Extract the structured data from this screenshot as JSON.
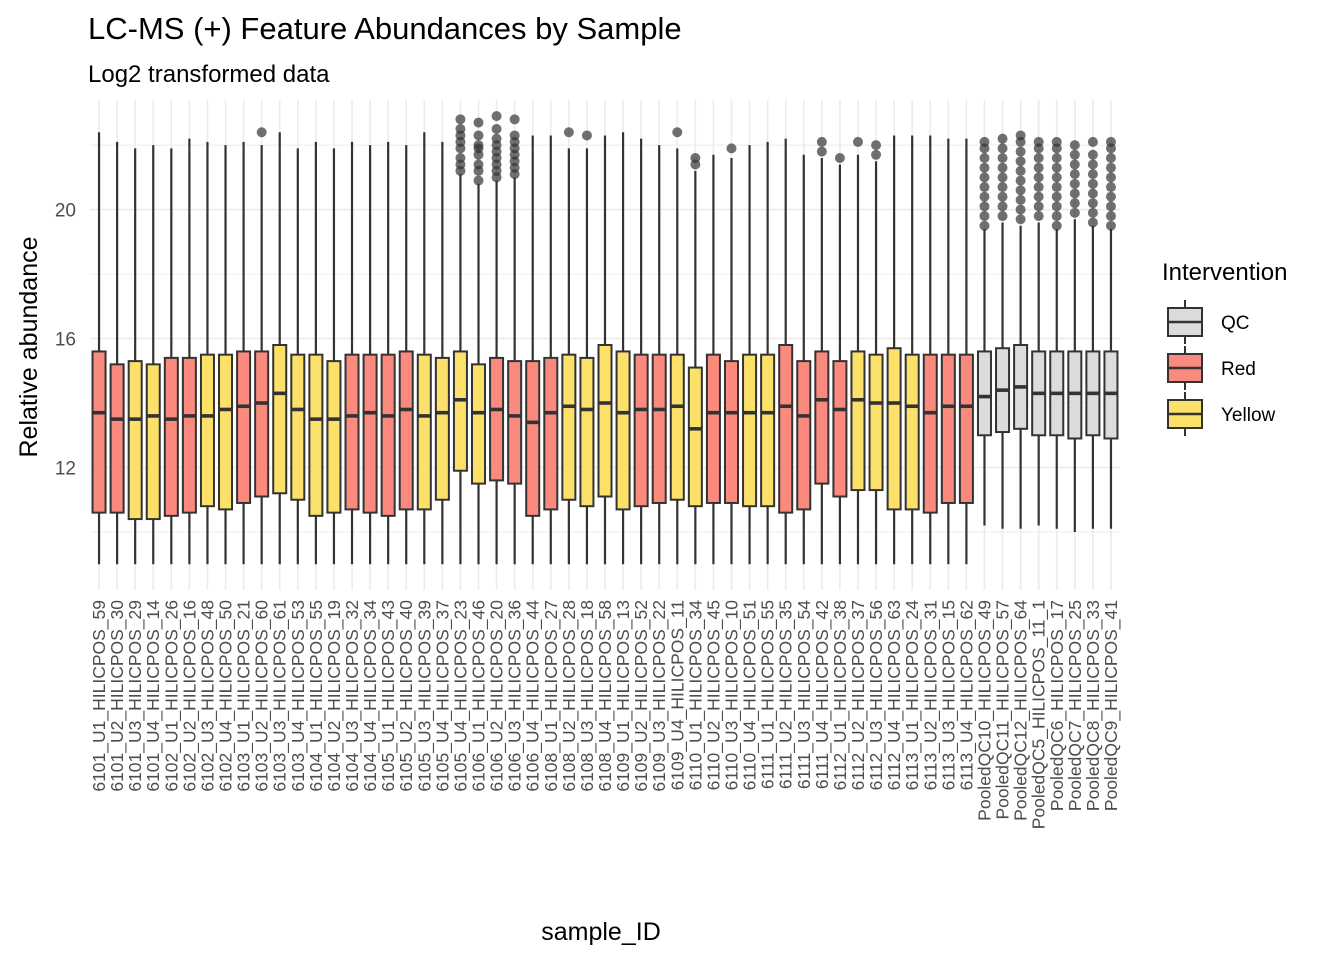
{
  "chart_data": {
    "type": "boxplot",
    "title": "LC-MS (+) Feature Abundances by Sample",
    "subtitle": "Log2 transformed data",
    "xlabel": "sample_ID",
    "ylabel": "Relative abundance",
    "ylim": [
      8.2,
      23.4
    ],
    "yticks": [
      12,
      16,
      20
    ],
    "grid": true,
    "legend": {
      "title": "Intervention",
      "position": "right",
      "entries": [
        {
          "label": "QC",
          "color": "#d9d9d9"
        },
        {
          "label": "Red",
          "color": "#f8766d"
        },
        {
          "label": "Yellow",
          "color": "#f5d34a"
        }
      ]
    },
    "colors": {
      "QC": "#dcdcdc",
      "Red": "#fa8a7e",
      "Yellow": "#fbe16a",
      "outline": "#333333",
      "outlier": "#333333"
    },
    "boxes": [
      {
        "sample": "6101_U1_HILICPOS_59",
        "group": "Red",
        "min": 9.0,
        "q1": 10.6,
        "median": 13.7,
        "q3": 15.6,
        "max": 22.4,
        "outliers": []
      },
      {
        "sample": "6101_U2_HILICPOS_30",
        "group": "Red",
        "min": 9.0,
        "q1": 10.6,
        "median": 13.5,
        "q3": 15.2,
        "max": 22.1,
        "outliers": []
      },
      {
        "sample": "6101_U3_HILICPOS_29",
        "group": "Yellow",
        "min": 9.0,
        "q1": 10.4,
        "median": 13.5,
        "q3": 15.3,
        "max": 21.9,
        "outliers": []
      },
      {
        "sample": "6101_U4_HILICPOS_14",
        "group": "Yellow",
        "min": 9.0,
        "q1": 10.4,
        "median": 13.6,
        "q3": 15.2,
        "max": 22.0,
        "outliers": []
      },
      {
        "sample": "6102_U1_HILICPOS_26",
        "group": "Red",
        "min": 9.0,
        "q1": 10.5,
        "median": 13.5,
        "q3": 15.4,
        "max": 21.9,
        "outliers": []
      },
      {
        "sample": "6102_U2_HILICPOS_16",
        "group": "Red",
        "min": 9.0,
        "q1": 10.6,
        "median": 13.6,
        "q3": 15.4,
        "max": 22.2,
        "outliers": []
      },
      {
        "sample": "6102_U3_HILICPOS_48",
        "group": "Yellow",
        "min": 9.0,
        "q1": 10.8,
        "median": 13.6,
        "q3": 15.5,
        "max": 22.1,
        "outliers": []
      },
      {
        "sample": "6102_U4_HILICPOS_50",
        "group": "Yellow",
        "min": 9.0,
        "q1": 10.7,
        "median": 13.8,
        "q3": 15.5,
        "max": 22.0,
        "outliers": []
      },
      {
        "sample": "6103_U1_HILICPOS_21",
        "group": "Red",
        "min": 9.0,
        "q1": 10.9,
        "median": 13.9,
        "q3": 15.6,
        "max": 22.1,
        "outliers": []
      },
      {
        "sample": "6103_U2_HILICPOS_60",
        "group": "Red",
        "min": 9.0,
        "q1": 11.1,
        "median": 14.0,
        "q3": 15.6,
        "max": 22.0,
        "outliers": [
          22.4
        ]
      },
      {
        "sample": "6103_U3_HILICPOS_61",
        "group": "Yellow",
        "min": 9.0,
        "q1": 11.2,
        "median": 14.3,
        "q3": 15.8,
        "max": 22.4,
        "outliers": []
      },
      {
        "sample": "6103_U4_HILICPOS_53",
        "group": "Yellow",
        "min": 9.0,
        "q1": 11.0,
        "median": 13.8,
        "q3": 15.5,
        "max": 21.9,
        "outliers": []
      },
      {
        "sample": "6104_U1_HILICPOS_55",
        "group": "Yellow",
        "min": 9.0,
        "q1": 10.5,
        "median": 13.5,
        "q3": 15.5,
        "max": 22.1,
        "outliers": []
      },
      {
        "sample": "6104_U2_HILICPOS_19",
        "group": "Yellow",
        "min": 9.0,
        "q1": 10.6,
        "median": 13.5,
        "q3": 15.3,
        "max": 21.9,
        "outliers": []
      },
      {
        "sample": "6104_U3_HILICPOS_32",
        "group": "Red",
        "min": 9.0,
        "q1": 10.7,
        "median": 13.6,
        "q3": 15.5,
        "max": 22.1,
        "outliers": []
      },
      {
        "sample": "6104_U4_HILICPOS_34",
        "group": "Red",
        "min": 9.0,
        "q1": 10.6,
        "median": 13.7,
        "q3": 15.5,
        "max": 22.0,
        "outliers": []
      },
      {
        "sample": "6105_U1_HILICPOS_43",
        "group": "Red",
        "min": 9.0,
        "q1": 10.5,
        "median": 13.6,
        "q3": 15.5,
        "max": 22.1,
        "outliers": []
      },
      {
        "sample": "6105_U2_HILICPOS_40",
        "group": "Red",
        "min": 9.0,
        "q1": 10.7,
        "median": 13.8,
        "q3": 15.6,
        "max": 22.0,
        "outliers": []
      },
      {
        "sample": "6105_U3_HILICPOS_39",
        "group": "Yellow",
        "min": 9.0,
        "q1": 10.7,
        "median": 13.6,
        "q3": 15.5,
        "max": 22.4,
        "outliers": []
      },
      {
        "sample": "6105_U4_HILICPOS_37",
        "group": "Yellow",
        "min": 9.0,
        "q1": 11.0,
        "median": 13.7,
        "q3": 15.4,
        "max": 22.1,
        "outliers": []
      },
      {
        "sample": "6105_U4_HILICPOS_23",
        "group": "Yellow",
        "min": 9.0,
        "q1": 11.9,
        "median": 14.1,
        "q3": 15.6,
        "max": 21.1,
        "outliers": [
          21.2,
          21.4,
          21.6,
          21.9,
          22.1,
          22.3,
          22.5,
          22.8
        ]
      },
      {
        "sample": "6106_U1_HILICPOS_46",
        "group": "Yellow",
        "min": 9.0,
        "q1": 11.5,
        "median": 13.7,
        "q3": 15.2,
        "max": 20.8,
        "outliers": [
          20.9,
          21.2,
          21.4,
          21.7,
          21.9,
          22.0,
          22.3,
          22.7
        ]
      },
      {
        "sample": "6106_U2_HILICPOS_20",
        "group": "Red",
        "min": 9.0,
        "q1": 11.6,
        "median": 13.8,
        "q3": 15.4,
        "max": 20.9,
        "outliers": [
          21.0,
          21.2,
          21.4,
          21.6,
          21.8,
          22.0,
          22.2,
          22.5,
          22.9
        ]
      },
      {
        "sample": "6106_U3_HILICPOS_36",
        "group": "Red",
        "min": 9.0,
        "q1": 11.5,
        "median": 13.6,
        "q3": 15.3,
        "max": 21.0,
        "outliers": [
          21.1,
          21.3,
          21.5,
          21.7,
          21.9,
          22.1,
          22.3,
          22.8
        ]
      },
      {
        "sample": "6106_U4_HILICPOS_44",
        "group": "Red",
        "min": 9.0,
        "q1": 10.5,
        "median": 13.4,
        "q3": 15.3,
        "max": 22.3,
        "outliers": []
      },
      {
        "sample": "6108_U1_HILICPOS_27",
        "group": "Red",
        "min": 9.0,
        "q1": 10.7,
        "median": 13.7,
        "q3": 15.4,
        "max": 22.3,
        "outliers": []
      },
      {
        "sample": "6108_U2_HILICPOS_28",
        "group": "Yellow",
        "min": 9.0,
        "q1": 11.0,
        "median": 13.9,
        "q3": 15.5,
        "max": 21.9,
        "outliers": [
          22.4
        ]
      },
      {
        "sample": "6108_U3_HILICPOS_18",
        "group": "Yellow",
        "min": 9.0,
        "q1": 10.8,
        "median": 13.8,
        "q3": 15.4,
        "max": 21.9,
        "outliers": [
          22.3
        ]
      },
      {
        "sample": "6108_U4_HILICPOS_58",
        "group": "Yellow",
        "min": 9.0,
        "q1": 11.1,
        "median": 14.0,
        "q3": 15.8,
        "max": 22.3,
        "outliers": []
      },
      {
        "sample": "6109_U1_HILICPOS_13",
        "group": "Yellow",
        "min": 9.0,
        "q1": 10.7,
        "median": 13.7,
        "q3": 15.6,
        "max": 22.4,
        "outliers": []
      },
      {
        "sample": "6109_U2_HILICPOS_52",
        "group": "Red",
        "min": 9.0,
        "q1": 10.8,
        "median": 13.8,
        "q3": 15.5,
        "max": 22.2,
        "outliers": []
      },
      {
        "sample": "6109_U3_HILICPOS_22",
        "group": "Red",
        "min": 9.0,
        "q1": 10.9,
        "median": 13.8,
        "q3": 15.5,
        "max": 22.0,
        "outliers": []
      },
      {
        "sample": "6109_U4_HILICPOS_11",
        "group": "Yellow",
        "min": 9.0,
        "q1": 11.0,
        "median": 13.9,
        "q3": 15.5,
        "max": 21.9,
        "outliers": [
          22.4
        ]
      },
      {
        "sample": "6110_U1_HILICPOS_34",
        "group": "Yellow",
        "min": 9.0,
        "q1": 10.8,
        "median": 13.2,
        "q3": 15.1,
        "max": 21.2,
        "outliers": [
          21.4,
          21.6
        ]
      },
      {
        "sample": "6110_U2_HILICPOS_45",
        "group": "Red",
        "min": 9.0,
        "q1": 10.9,
        "median": 13.7,
        "q3": 15.5,
        "max": 21.7,
        "outliers": []
      },
      {
        "sample": "6110_U3_HILICPOS_10",
        "group": "Red",
        "min": 9.0,
        "q1": 10.9,
        "median": 13.7,
        "q3": 15.3,
        "max": 21.6,
        "outliers": [
          21.9
        ]
      },
      {
        "sample": "6110_U4_HILICPOS_51",
        "group": "Yellow",
        "min": 9.0,
        "q1": 10.8,
        "median": 13.7,
        "q3": 15.5,
        "max": 22.0,
        "outliers": []
      },
      {
        "sample": "6111_U1_HILICPOS_55",
        "group": "Yellow",
        "min": 9.0,
        "q1": 10.8,
        "median": 13.7,
        "q3": 15.5,
        "max": 22.1,
        "outliers": []
      },
      {
        "sample": "6111_U2_HILICPOS_35",
        "group": "Red",
        "min": 9.0,
        "q1": 10.6,
        "median": 13.9,
        "q3": 15.8,
        "max": 22.2,
        "outliers": []
      },
      {
        "sample": "6111_U3_HILICPOS_54",
        "group": "Red",
        "min": 9.0,
        "q1": 10.7,
        "median": 13.6,
        "q3": 15.3,
        "max": 21.7,
        "outliers": []
      },
      {
        "sample": "6111_U4_HILICPOS_42",
        "group": "Red",
        "min": 9.0,
        "q1": 11.5,
        "median": 14.1,
        "q3": 15.6,
        "max": 21.6,
        "outliers": [
          21.8,
          22.1
        ]
      },
      {
        "sample": "6112_U1_HILICPOS_38",
        "group": "Red",
        "min": 9.0,
        "q1": 11.1,
        "median": 13.8,
        "q3": 15.3,
        "max": 21.4,
        "outliers": [
          21.6
        ]
      },
      {
        "sample": "6112_U2_HILICPOS_37",
        "group": "Yellow",
        "min": 9.0,
        "q1": 11.3,
        "median": 14.1,
        "q3": 15.6,
        "max": 21.7,
        "outliers": [
          22.1
        ]
      },
      {
        "sample": "6112_U3_HILICPOS_56",
        "group": "Yellow",
        "min": 9.0,
        "q1": 11.3,
        "median": 14.0,
        "q3": 15.5,
        "max": 21.5,
        "outliers": [
          21.7,
          22.0
        ]
      },
      {
        "sample": "6112_U4_HILICPOS_63",
        "group": "Yellow",
        "min": 9.0,
        "q1": 10.7,
        "median": 14.0,
        "q3": 15.7,
        "max": 22.3,
        "outliers": []
      },
      {
        "sample": "6113_U1_HILICPOS_24",
        "group": "Yellow",
        "min": 9.0,
        "q1": 10.7,
        "median": 13.9,
        "q3": 15.5,
        "max": 22.3,
        "outliers": []
      },
      {
        "sample": "6113_U2_HILICPOS_31",
        "group": "Red",
        "min": 9.0,
        "q1": 10.6,
        "median": 13.7,
        "q3": 15.5,
        "max": 22.3,
        "outliers": []
      },
      {
        "sample": "6113_U3_HILICPOS_15",
        "group": "Red",
        "min": 9.0,
        "q1": 10.9,
        "median": 13.9,
        "q3": 15.5,
        "max": 22.2,
        "outliers": []
      },
      {
        "sample": "6113_U4_HILICPOS_62",
        "group": "Red",
        "min": 9.0,
        "q1": 10.9,
        "median": 13.9,
        "q3": 15.5,
        "max": 22.2,
        "outliers": []
      },
      {
        "sample": "PooledQC10_HILICPOS_49",
        "group": "QC",
        "min": 10.2,
        "q1": 13.0,
        "median": 14.2,
        "q3": 15.6,
        "max": 19.4,
        "outliers": [
          19.5,
          19.8,
          20.1,
          20.4,
          20.7,
          21.0,
          21.3,
          21.6,
          21.9,
          22.1
        ]
      },
      {
        "sample": "PooledQC11_HILICPOS_57",
        "group": "QC",
        "min": 10.1,
        "q1": 13.1,
        "median": 14.4,
        "q3": 15.7,
        "max": 19.6,
        "outliers": [
          19.8,
          20.1,
          20.4,
          20.7,
          21.0,
          21.3,
          21.6,
          21.9,
          22.2
        ]
      },
      {
        "sample": "PooledQC12_HILICPOS_64",
        "group": "QC",
        "min": 10.1,
        "q1": 13.2,
        "median": 14.5,
        "q3": 15.8,
        "max": 19.5,
        "outliers": [
          19.7,
          20.0,
          20.3,
          20.6,
          20.9,
          21.2,
          21.5,
          21.8,
          22.1,
          22.3
        ]
      },
      {
        "sample": "PooledQC5_HILICPOS_11_1",
        "group": "QC",
        "min": 10.2,
        "q1": 13.0,
        "median": 14.3,
        "q3": 15.6,
        "max": 19.6,
        "outliers": [
          19.8,
          20.1,
          20.4,
          20.7,
          21.0,
          21.3,
          21.6,
          21.9,
          22.1
        ]
      },
      {
        "sample": "PooledQC6_HILICPOS_17",
        "group": "QC",
        "min": 10.1,
        "q1": 13.0,
        "median": 14.3,
        "q3": 15.6,
        "max": 19.4,
        "outliers": [
          19.5,
          19.8,
          20.1,
          20.4,
          20.7,
          21.0,
          21.3,
          21.6,
          21.9,
          22.1
        ]
      },
      {
        "sample": "PooledQC7_HILICPOS_25",
        "group": "QC",
        "min": 10.0,
        "q1": 12.9,
        "median": 14.3,
        "q3": 15.6,
        "max": 19.7,
        "outliers": [
          19.9,
          20.2,
          20.5,
          20.8,
          21.1,
          21.4,
          21.7,
          22.0
        ]
      },
      {
        "sample": "PooledQC8_HILICPOS_33",
        "group": "QC",
        "min": 10.1,
        "q1": 13.0,
        "median": 14.3,
        "q3": 15.6,
        "max": 19.5,
        "outliers": [
          19.6,
          19.9,
          20.2,
          20.5,
          20.8,
          21.1,
          21.4,
          21.7,
          22.1
        ]
      },
      {
        "sample": "PooledQC9_HILICPOS_41",
        "group": "QC",
        "min": 10.1,
        "q1": 12.9,
        "median": 14.3,
        "q3": 15.6,
        "max": 19.4,
        "outliers": [
          19.5,
          19.8,
          20.1,
          20.4,
          20.7,
          21.0,
          21.3,
          21.6,
          21.9,
          22.1
        ]
      }
    ]
  }
}
